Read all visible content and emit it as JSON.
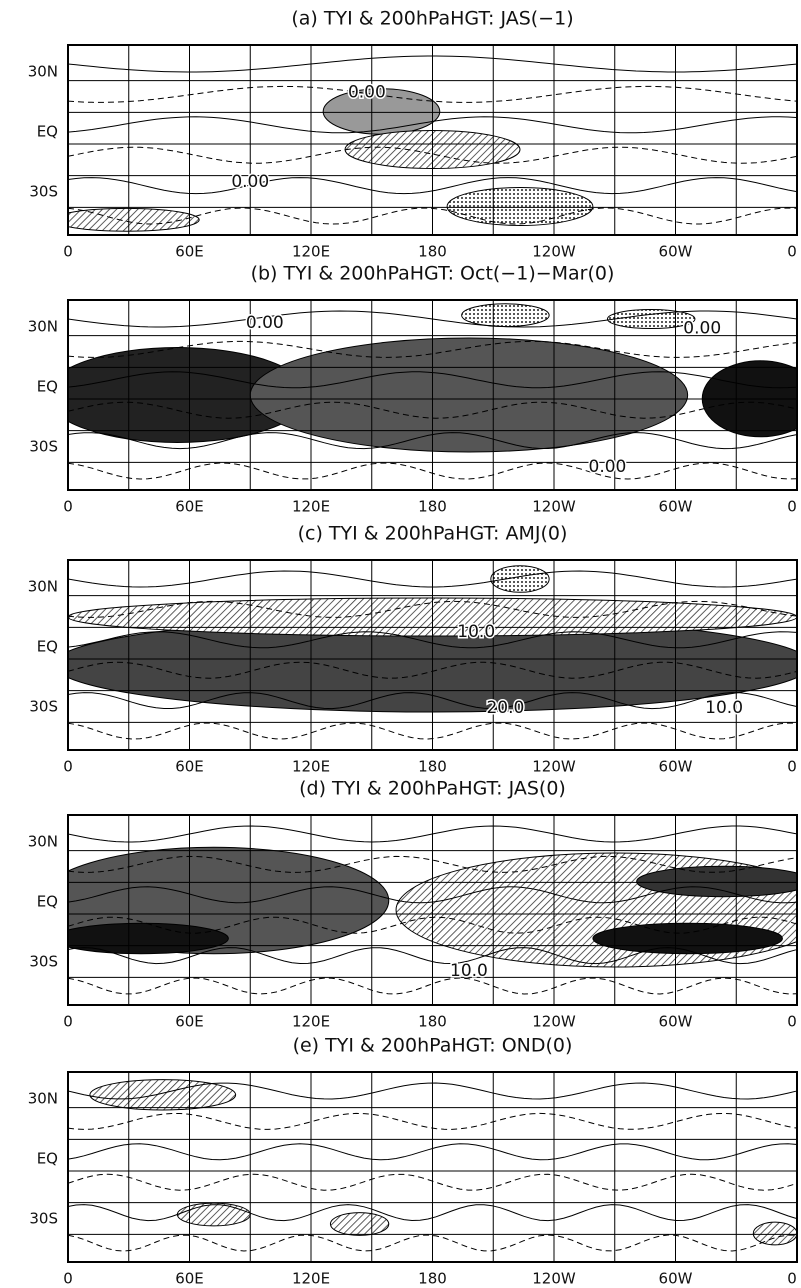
{
  "panels": [
    {
      "title": "(a) TYI & 200hPaHGT: JAS(−1)",
      "contour_labels": [
        "0.00",
        "0.00"
      ]
    },
    {
      "title": "(b) TYI & 200hPaHGT: Oct(−1)−Mar(0)",
      "contour_labels": [
        "0.00",
        "0.00",
        "0.00"
      ]
    },
    {
      "title": "(c) TYI & 200hPaHGT: AMJ(0)",
      "contour_labels": [
        "10.0",
        "20.0",
        "10.0"
      ]
    },
    {
      "title": "(d) TYI & 200hPaHGT: JAS(0)",
      "contour_labels": [
        "10.0"
      ]
    },
    {
      "title": "(e) TYI & 200hPaHGT: OND(0)",
      "contour_labels": []
    }
  ],
  "x_axis_labels": [
    "0",
    "60E",
    "120E",
    "180",
    "120W",
    "60W",
    "0"
  ],
  "y_axis_labels": [
    "30N",
    "EQ",
    "30S"
  ]
}
